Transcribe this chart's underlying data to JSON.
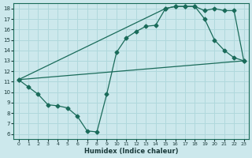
{
  "xlabel": "Humidex (Indice chaleur)",
  "bg_color": "#cce8ec",
  "grid_color": "#b0d8dc",
  "line_color": "#1a6b5a",
  "xlim": [
    -0.5,
    23.5
  ],
  "ylim": [
    5.5,
    18.5
  ],
  "xticks": [
    0,
    1,
    2,
    3,
    4,
    5,
    6,
    7,
    8,
    9,
    10,
    11,
    12,
    13,
    14,
    15,
    16,
    17,
    18,
    19,
    20,
    21,
    22,
    23
  ],
  "yticks": [
    6,
    7,
    8,
    9,
    10,
    11,
    12,
    13,
    14,
    15,
    16,
    17,
    18
  ],
  "line1_x": [
    0,
    1,
    2,
    3,
    4,
    5,
    6,
    7,
    8,
    9,
    10,
    11,
    12,
    13,
    14,
    15,
    16,
    17,
    18,
    19,
    20,
    21,
    22,
    23
  ],
  "line1_y": [
    11.2,
    10.5,
    9.8,
    8.8,
    8.7,
    8.5,
    7.7,
    6.3,
    6.2,
    9.8,
    13.8,
    15.2,
    15.8,
    16.3,
    16.4,
    18.0,
    18.2,
    18.2,
    18.2,
    17.0,
    15.0,
    14.0,
    13.3,
    13.0
  ],
  "line2_x": [
    0,
    15,
    16,
    17,
    18,
    19,
    20,
    21,
    22,
    23
  ],
  "line2_y": [
    11.2,
    18.0,
    18.2,
    18.2,
    18.2,
    17.8,
    18.0,
    17.8,
    17.8,
    13.0
  ],
  "line3_x": [
    0,
    23
  ],
  "line3_y": [
    11.2,
    13.0
  ],
  "marker_size": 2.5
}
